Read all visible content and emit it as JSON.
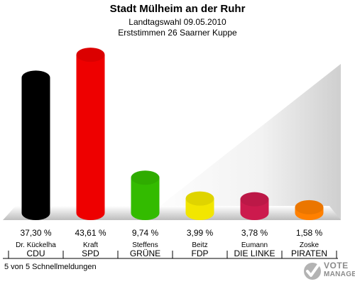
{
  "chart_data": {
    "type": "bar",
    "title": "Stadt Mülheim an der Ruhr",
    "subtitles": [
      "Landtagswahl 09.05.2010",
      "Erststimmen 26 Saarner Kuppe"
    ],
    "categories": [
      "CDU",
      "SPD",
      "GRÜNE",
      "FDP",
      "DIE LINKE",
      "PIRATEN"
    ],
    "candidates": [
      "Dr. Kückelha",
      "Kraft",
      "Steffens",
      "Beitz",
      "Eumann",
      "Zoske"
    ],
    "values": [
      37.3,
      43.61,
      9.74,
      3.99,
      3.78,
      1.58
    ],
    "value_labels": [
      "37,30 %",
      "43,61 %",
      "9,74 %",
      "3,99 %",
      "3,78 %",
      "1,58 %"
    ],
    "colors": [
      "#000000",
      "#ee0000",
      "#33bb00",
      "#f2e600",
      "#cc1a4d",
      "#ff8000"
    ],
    "ylim": [
      0,
      45
    ],
    "grid": false,
    "legend": "none"
  },
  "footer": "5 von 5 Schnellmeldungen",
  "logo": {
    "line1": "VOTE",
    "line2": "MANAGER",
    "icon": "checkmark-shield-icon"
  }
}
